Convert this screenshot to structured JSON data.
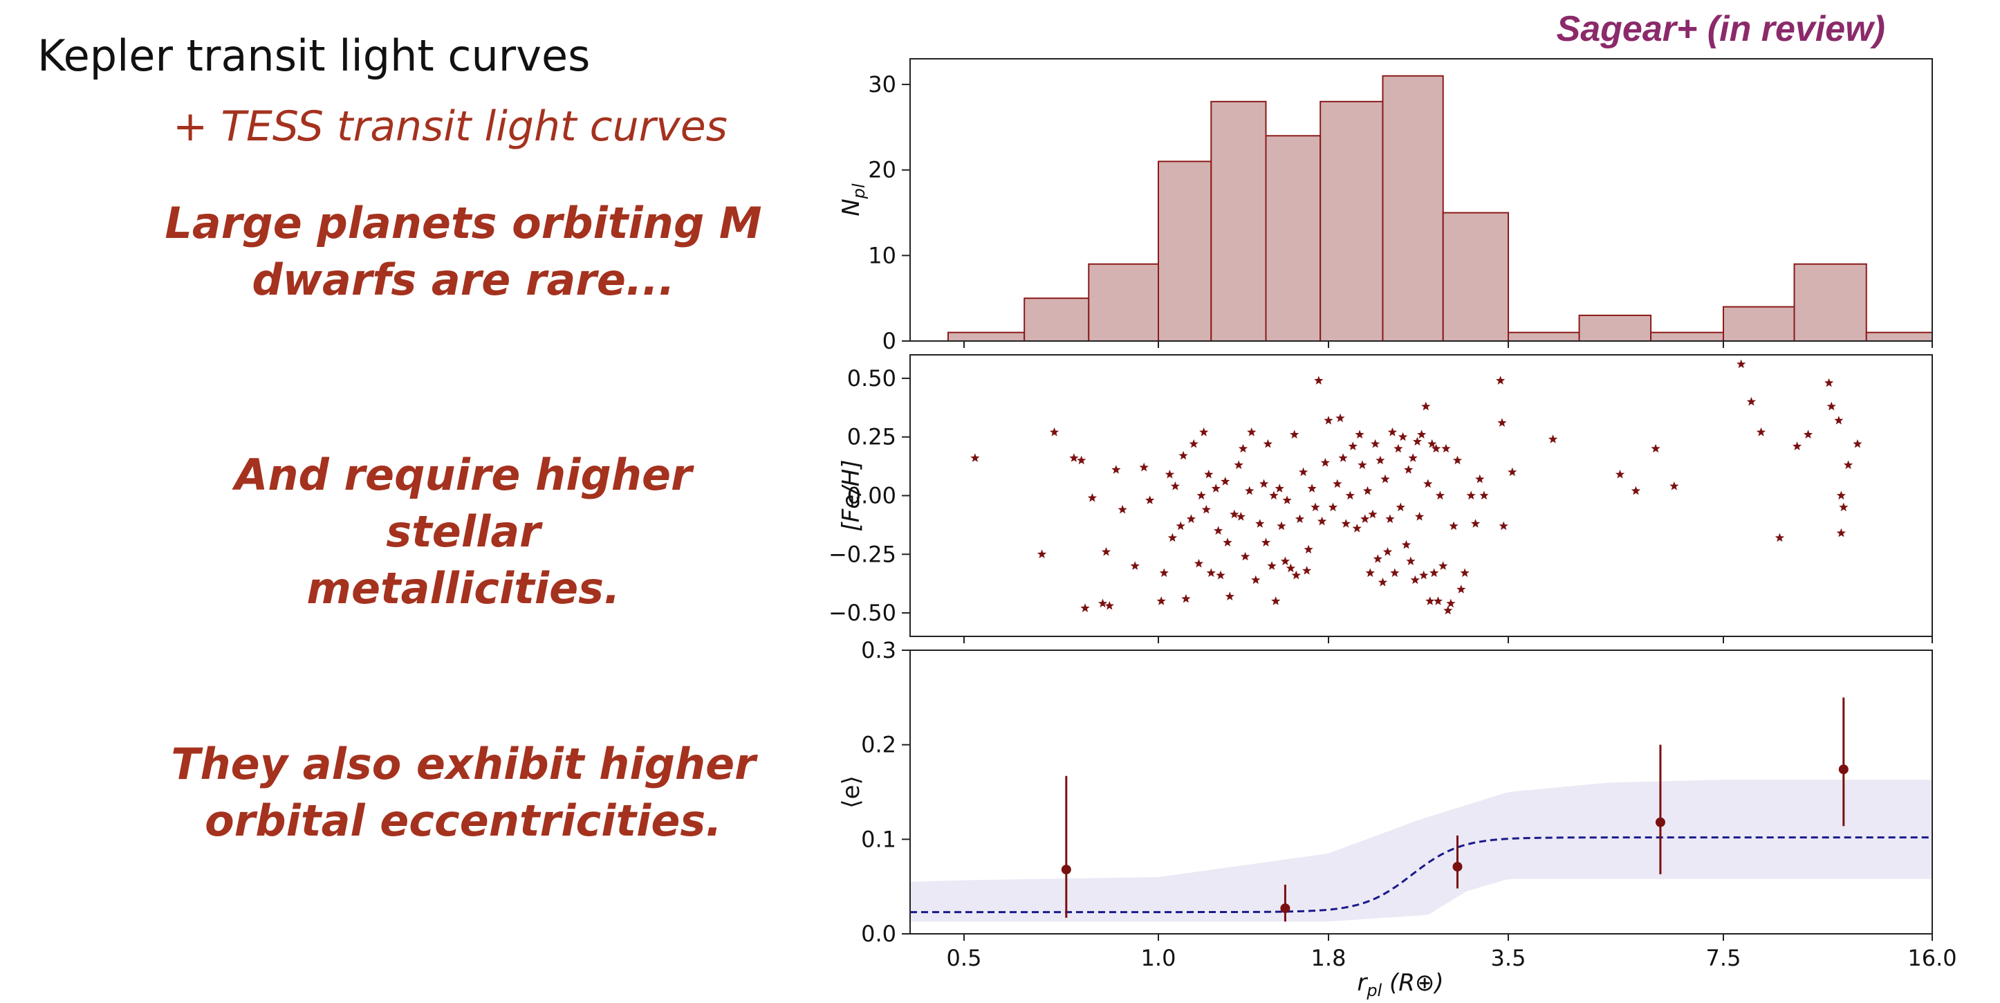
{
  "slide": {
    "heading": "Kepler transit light curves",
    "subheading": "+ TESS transit light curves",
    "points": [
      {
        "line1": "Large planets orbiting M",
        "line2": "dwarfs are rare..."
      },
      {
        "line1": "And require higher stellar",
        "line2": "metallicities."
      },
      {
        "line1": "They also exhibit higher",
        "line2": "orbital eccentricities."
      }
    ],
    "citation": "Sagear+ (in review)"
  },
  "colors": {
    "accent": "#a4321e",
    "citation": "#8b2a6a",
    "hist_fill": "#d4b2b1",
    "hist_edge": "#8b1a1a",
    "marker": "#7a1010",
    "model_line": "#1a1a8c",
    "band": "#ebe9f5"
  },
  "chart_data": [
    {
      "type": "bar",
      "subtype": "histogram",
      "ylabel": "N_pl",
      "xticks": [
        "0.5",
        "1.0",
        "1.8",
        "3.5",
        "7.5",
        "16.0"
      ],
      "xlim": [
        0.35,
        16.0
      ],
      "ylim": [
        0,
        33
      ],
      "yticks": [
        0,
        10,
        20,
        30
      ],
      "bins": [
        {
          "x0": 0.45,
          "x1": 0.62,
          "value": 1
        },
        {
          "x0": 0.62,
          "x1": 0.78,
          "value": 5
        },
        {
          "x0": 0.78,
          "x1": 1.0,
          "value": 9
        },
        {
          "x0": 1.0,
          "x1": 1.2,
          "value": 21
        },
        {
          "x0": 1.2,
          "x1": 1.45,
          "value": 28
        },
        {
          "x0": 1.45,
          "x1": 1.75,
          "value": 24
        },
        {
          "x0": 1.75,
          "x1": 2.2,
          "value": 28
        },
        {
          "x0": 2.2,
          "x1": 2.75,
          "value": 31
        },
        {
          "x0": 2.75,
          "x1": 3.5,
          "value": 15
        },
        {
          "x0": 3.5,
          "x1": 4.5,
          "value": 1
        },
        {
          "x0": 4.5,
          "x1": 5.8,
          "value": 3
        },
        {
          "x0": 5.8,
          "x1": 7.5,
          "value": 1
        },
        {
          "x0": 7.5,
          "x1": 9.7,
          "value": 4
        },
        {
          "x0": 9.7,
          "x1": 12.6,
          "value": 9
        },
        {
          "x0": 12.6,
          "x1": 16.0,
          "value": 1
        }
      ]
    },
    {
      "type": "scatter",
      "ylabel": "[Fe/H]",
      "xlim": [
        0.35,
        16.0
      ],
      "ylim": [
        -0.6,
        0.6
      ],
      "yticks": [
        0.5,
        0.25,
        0.0,
        -0.25,
        -0.5
      ],
      "yticklabels": [
        "0.50",
        "0.25",
        "0.00",
        "−0.25",
        "−0.50"
      ],
      "marker": "star",
      "points": [
        [
          0.52,
          0.16
        ],
        [
          0.66,
          -0.25
        ],
        [
          0.69,
          0.27
        ],
        [
          0.74,
          0.16
        ],
        [
          0.76,
          0.15
        ],
        [
          0.77,
          -0.48
        ],
        [
          0.79,
          -0.01
        ],
        [
          0.82,
          -0.46
        ],
        [
          0.84,
          -0.47
        ],
        [
          0.83,
          -0.24
        ],
        [
          0.86,
          0.11
        ],
        [
          0.88,
          -0.06
        ],
        [
          0.92,
          -0.3
        ],
        [
          0.95,
          0.12
        ],
        [
          0.97,
          -0.02
        ],
        [
          1.01,
          -0.45
        ],
        [
          1.02,
          -0.33
        ],
        [
          1.04,
          0.09
        ],
        [
          1.05,
          -0.18
        ],
        [
          1.06,
          0.04
        ],
        [
          1.08,
          -0.13
        ],
        [
          1.09,
          0.17
        ],
        [
          1.1,
          -0.44
        ],
        [
          1.12,
          -0.1
        ],
        [
          1.13,
          0.22
        ],
        [
          1.15,
          -0.29
        ],
        [
          1.16,
          0.0
        ],
        [
          1.17,
          0.27
        ],
        [
          1.18,
          -0.06
        ],
        [
          1.19,
          0.09
        ],
        [
          1.2,
          -0.33
        ],
        [
          1.22,
          0.03
        ],
        [
          1.23,
          -0.15
        ],
        [
          1.24,
          -0.34
        ],
        [
          1.26,
          0.06
        ],
        [
          1.27,
          -0.2
        ],
        [
          1.28,
          -0.43
        ],
        [
          1.3,
          -0.08
        ],
        [
          1.32,
          0.13
        ],
        [
          1.33,
          -0.09
        ],
        [
          1.34,
          0.2
        ],
        [
          1.35,
          -0.26
        ],
        [
          1.37,
          0.02
        ],
        [
          1.38,
          0.27
        ],
        [
          1.4,
          -0.36
        ],
        [
          1.42,
          -0.12
        ],
        [
          1.44,
          0.05
        ],
        [
          1.45,
          -0.2
        ],
        [
          1.46,
          0.22
        ],
        [
          1.48,
          -0.3
        ],
        [
          1.49,
          0.0
        ],
        [
          1.5,
          -0.45
        ],
        [
          1.52,
          0.03
        ],
        [
          1.53,
          -0.13
        ],
        [
          1.55,
          -0.28
        ],
        [
          1.56,
          -0.02
        ],
        [
          1.58,
          -0.31
        ],
        [
          1.6,
          0.26
        ],
        [
          1.61,
          -0.34
        ],
        [
          1.63,
          -0.1
        ],
        [
          1.65,
          0.1
        ],
        [
          1.67,
          -0.32
        ],
        [
          1.68,
          -0.23
        ],
        [
          1.7,
          0.03
        ],
        [
          1.72,
          -0.05
        ],
        [
          1.74,
          0.49
        ],
        [
          1.76,
          -0.11
        ],
        [
          1.78,
          0.14
        ],
        [
          1.8,
          0.32
        ],
        [
          1.83,
          -0.05
        ],
        [
          1.86,
          0.05
        ],
        [
          1.88,
          0.33
        ],
        [
          1.9,
          0.16
        ],
        [
          1.92,
          -0.12
        ],
        [
          1.95,
          0.0
        ],
        [
          1.97,
          0.21
        ],
        [
          2.0,
          -0.14
        ],
        [
          2.02,
          0.26
        ],
        [
          2.04,
          0.13
        ],
        [
          2.06,
          -0.1
        ],
        [
          2.08,
          0.02
        ],
        [
          2.1,
          -0.33
        ],
        [
          2.12,
          -0.08
        ],
        [
          2.14,
          0.22
        ],
        [
          2.16,
          -0.27
        ],
        [
          2.18,
          0.15
        ],
        [
          2.2,
          -0.37
        ],
        [
          2.22,
          0.07
        ],
        [
          2.24,
          -0.24
        ],
        [
          2.26,
          -0.1
        ],
        [
          2.28,
          0.27
        ],
        [
          2.3,
          -0.33
        ],
        [
          2.33,
          0.2
        ],
        [
          2.35,
          -0.05
        ],
        [
          2.37,
          0.25
        ],
        [
          2.4,
          -0.21
        ],
        [
          2.42,
          0.11
        ],
        [
          2.44,
          -0.28
        ],
        [
          2.46,
          0.16
        ],
        [
          2.48,
          -0.36
        ],
        [
          2.5,
          0.23
        ],
        [
          2.52,
          -0.09
        ],
        [
          2.54,
          0.26
        ],
        [
          2.56,
          -0.34
        ],
        [
          2.58,
          0.38
        ],
        [
          2.6,
          0.05
        ],
        [
          2.62,
          -0.45
        ],
        [
          2.64,
          0.22
        ],
        [
          2.66,
          -0.33
        ],
        [
          2.68,
          0.2
        ],
        [
          2.7,
          -0.45
        ],
        [
          2.72,
          0.0
        ],
        [
          2.75,
          -0.3
        ],
        [
          2.78,
          0.2
        ],
        [
          2.8,
          -0.49
        ],
        [
          2.83,
          -0.46
        ],
        [
          2.86,
          -0.13
        ],
        [
          2.9,
          0.15
        ],
        [
          2.94,
          -0.4
        ],
        [
          2.98,
          -0.33
        ],
        [
          3.05,
          0.0
        ],
        [
          3.1,
          -0.12
        ],
        [
          3.15,
          0.07
        ],
        [
          3.2,
          0.0
        ],
        [
          3.4,
          0.49
        ],
        [
          3.42,
          0.31
        ],
        [
          3.44,
          -0.13
        ],
        [
          3.55,
          0.1
        ],
        [
          4.1,
          0.24
        ],
        [
          5.2,
          0.09
        ],
        [
          5.5,
          0.02
        ],
        [
          5.9,
          0.2
        ],
        [
          6.3,
          0.04
        ],
        [
          8.0,
          0.56
        ],
        [
          8.3,
          0.4
        ],
        [
          8.6,
          0.27
        ],
        [
          9.2,
          -0.18
        ],
        [
          9.8,
          0.21
        ],
        [
          10.2,
          0.26
        ],
        [
          11.0,
          0.48
        ],
        [
          11.1,
          0.38
        ],
        [
          11.4,
          0.32
        ],
        [
          11.5,
          0.0
        ],
        [
          11.6,
          -0.05
        ],
        [
          11.5,
          -0.16
        ],
        [
          11.8,
          0.13
        ],
        [
          12.2,
          0.22
        ]
      ]
    },
    {
      "type": "line",
      "ylabel": "⟨e⟩",
      "xlabel": "r_pl  (R⊕)",
      "xlim": [
        0.35,
        16.0
      ],
      "ylim": [
        0.0,
        0.3
      ],
      "yticks": [
        0.0,
        0.1,
        0.2,
        0.3
      ],
      "yticklabels": [
        "0.0",
        "0.1",
        "0.2",
        "0.3"
      ],
      "xticks": [
        0.5,
        1.0,
        1.8,
        3.5,
        7.5,
        16.0
      ],
      "xticklabels": [
        "0.5",
        "1.0",
        "1.8",
        "3.5",
        "7.5",
        "16.0"
      ],
      "points": [
        {
          "x": 0.72,
          "y": 0.068,
          "ylo": 0.017,
          "yhi": 0.167
        },
        {
          "x": 1.55,
          "y": 0.027,
          "ylo": 0.013,
          "yhi": 0.052
        },
        {
          "x": 2.9,
          "y": 0.071,
          "ylo": 0.048,
          "yhi": 0.104
        },
        {
          "x": 6.0,
          "y": 0.118,
          "ylo": 0.063,
          "yhi": 0.2
        },
        {
          "x": 11.6,
          "y": 0.174,
          "ylo": 0.114,
          "yhi": 0.25
        }
      ],
      "model": {
        "low": 0.023,
        "high": 0.102,
        "center": 2.45,
        "width": 0.09,
        "style": "dashed"
      },
      "band": {
        "upper": [
          [
            0.35,
            0.055
          ],
          [
            1.0,
            0.06
          ],
          [
            1.8,
            0.085
          ],
          [
            2.5,
            0.12
          ],
          [
            3.5,
            0.15
          ],
          [
            5.0,
            0.16
          ],
          [
            7.5,
            0.163
          ],
          [
            16.0,
            0.163
          ]
        ],
        "lower": [
          [
            0.35,
            0.013
          ],
          [
            1.8,
            0.013
          ],
          [
            2.6,
            0.02
          ],
          [
            3.0,
            0.045
          ],
          [
            3.5,
            0.058
          ],
          [
            5.0,
            0.058
          ],
          [
            16.0,
            0.058
          ]
        ]
      }
    }
  ]
}
